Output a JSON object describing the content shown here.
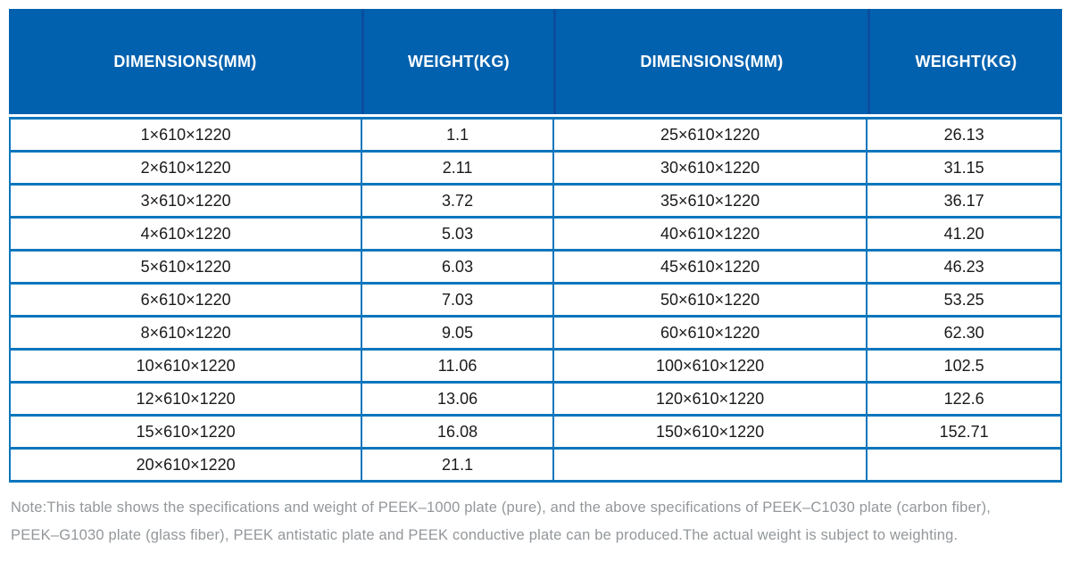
{
  "table": {
    "columns": [
      {
        "label": "DIMENSIONS(MM)"
      },
      {
        "label": "WEIGHT(KG)"
      },
      {
        "label": "DIMENSIONS(MM)"
      },
      {
        "label": "WEIGHT(KG)"
      }
    ],
    "rows": [
      [
        "1×610×1220",
        "1.1",
        "25×610×1220",
        "26.13"
      ],
      [
        "2×610×1220",
        "2.11",
        "30×610×1220",
        "31.15"
      ],
      [
        "3×610×1220",
        "3.72",
        "35×610×1220",
        "36.17"
      ],
      [
        "4×610×1220",
        "5.03",
        "40×610×1220",
        "41.20"
      ],
      [
        "5×610×1220",
        "6.03",
        "45×610×1220",
        "46.23"
      ],
      [
        "6×610×1220",
        "7.03",
        "50×610×1220",
        "53.25"
      ],
      [
        "8×610×1220",
        "9.05",
        "60×610×1220",
        "62.30"
      ],
      [
        "10×610×1220",
        "11.06",
        "100×610×1220",
        "102.5"
      ],
      [
        "12×610×1220",
        "13.06",
        "120×610×1220",
        "122.6"
      ],
      [
        "15×610×1220",
        "16.08",
        "150×610×1220",
        "152.71"
      ],
      [
        "20×610×1220",
        "21.1",
        "",
        ""
      ]
    ]
  },
  "note": {
    "line1": "Note:This table shows the specifications and weight of PEEK–1000 plate (pure), and the above specifications of PEEK–C1030 plate (carbon fiber),",
    "line2": "PEEK–G1030 plate (glass fiber), PEEK antistatic plate and PEEK conductive plate can be produced.The actual weight is subject to weighting."
  },
  "colors": {
    "header_bg": "#0261AE",
    "header_divider": "#0A4D9E",
    "grid_border": "#0B76BC",
    "cell_text": "#1A1A1A",
    "note_text": "#93979A"
  }
}
